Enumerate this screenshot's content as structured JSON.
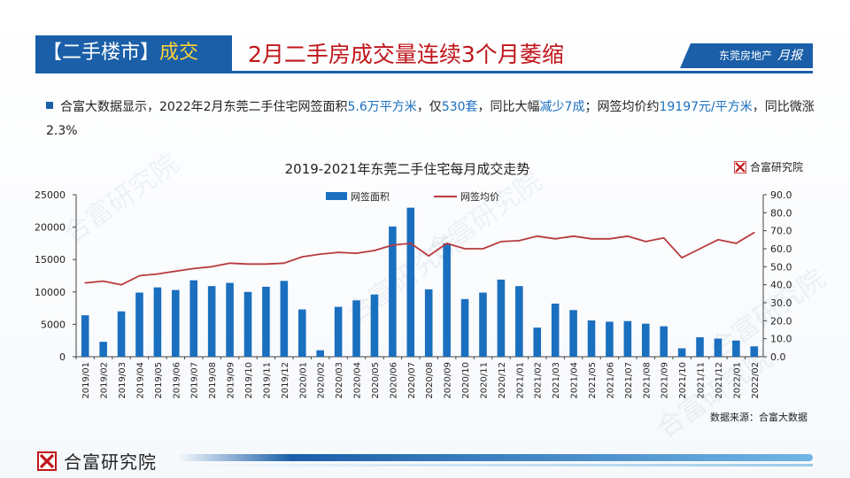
{
  "header": {
    "section_bracket_open": "【二手楼市】",
    "section_accent": "成交",
    "title": "2月二手房成交量连续3个月萎缩",
    "brand": "东莞房地产",
    "brand_script": "月报"
  },
  "bullet": {
    "p1": "合富大数据显示，2022年2月东莞二手住宅网签面积",
    "v1": "5.6万平方米",
    "p2": "，仅",
    "v2": "530套",
    "p3": "，同比大幅",
    "v3": "减少7成",
    "p4": "；网签均价约",
    "v4": "19197元/平方米",
    "p5": "，同比微涨2.3%"
  },
  "chart_logo_text": "合富研究院",
  "watermark_text": "合富研究院",
  "footer": {
    "name": "合富研究院"
  },
  "colors": {
    "brand_blue": "#1a5fa8",
    "bar_blue": "#1a6fbf",
    "line_red": "#b83a3d",
    "title_red": "#c0161b"
  },
  "chart_data": {
    "type": "bar",
    "title": "2019-2021年东莞二手住宅每月成交走势",
    "source": "数据来源：合富大数据",
    "legend_position": "top",
    "grid": false,
    "categories": [
      "2019/01",
      "2019/02",
      "2019/03",
      "2019/04",
      "2019/05",
      "2019/06",
      "2019/07",
      "2019/08",
      "2019/09",
      "2019/10",
      "2019/11",
      "2019/12",
      "2020/01",
      "2020/02",
      "2020/03",
      "2020/04",
      "2020/05",
      "2020/06",
      "2020/07",
      "2020/08",
      "2020/09",
      "2020/10",
      "2020/11",
      "2020/12",
      "2021/01",
      "2021/02",
      "2021/03",
      "2021/04",
      "2021/05",
      "2021/06",
      "2021/07",
      "2021/08",
      "2021/09",
      "2021/10",
      "2021/11",
      "2021/12",
      "2022/01",
      "2022/02"
    ],
    "series": [
      {
        "name": "网签面积",
        "type": "bar",
        "axis": "left",
        "values": [
          6400,
          2300,
          7000,
          9900,
          10700,
          10300,
          11800,
          10900,
          11400,
          10000,
          10800,
          11700,
          7300,
          1000,
          7700,
          8700,
          9600,
          20100,
          23000,
          10400,
          17500,
          8900,
          9900,
          11900,
          10900,
          4500,
          8200,
          7200,
          5600,
          5400,
          5500,
          5100,
          4700,
          1300,
          3000,
          2800,
          2500,
          1600
        ]
      },
      {
        "name": "网签均价",
        "type": "line",
        "axis": "right",
        "values": [
          41,
          42,
          40,
          45,
          46,
          47.5,
          49,
          50,
          52,
          51.5,
          51.5,
          52,
          55.5,
          57,
          58,
          57.5,
          59,
          62,
          63,
          56,
          63,
          60,
          60,
          64,
          64.5,
          67,
          65.5,
          67,
          65.5,
          65.5,
          67,
          64,
          66,
          55,
          60,
          65,
          63,
          69
        ]
      }
    ],
    "y_left": {
      "ticks": [
        "0",
        "5000",
        "10000",
        "15000",
        "20000",
        "25000"
      ],
      "min": 0,
      "max": 25000
    },
    "y_right": {
      "ticks": [
        "0.0",
        "10.0",
        "20.0",
        "30.0",
        "40.0",
        "50.0",
        "60.0",
        "70.0",
        "80.0",
        "90.0"
      ],
      "min": 0,
      "max": 90
    }
  }
}
